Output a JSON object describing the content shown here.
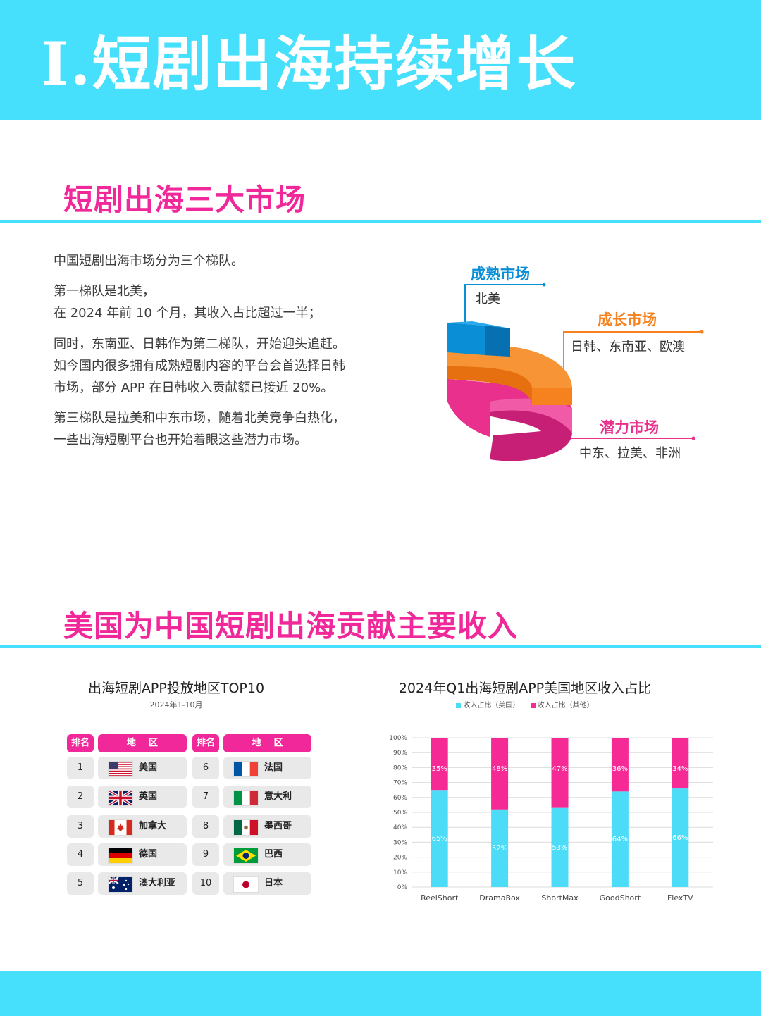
{
  "header": {
    "title": "Ⅰ.短剧出海持续增长"
  },
  "section1": {
    "title": "短剧出海三大市场",
    "paragraphs": [
      [
        "中国短剧出海市场分为三个梯队。"
      ],
      [
        "第一梯队是北美，",
        "在 2024 年前 10 个月，其收入占比超过一半；"
      ],
      [
        "同时，东南亚、日韩作为第二梯队，开始迎头追赶。",
        "如今国内很多拥有成熟短剧内容的平台会首选择日韩",
        "市场，部分 APP 在日韩收入贡献额已接近 20%。"
      ],
      [
        "第三梯队是拉美和中东市场，随着北美竞争白热化，",
        "一些出海短剧平台也开始着眼这些潜力市场。"
      ]
    ],
    "markets": [
      {
        "title": "成熟市场",
        "desc": "北美",
        "color": "#0a8fd6"
      },
      {
        "title": "成长市场",
        "desc": "日韩、东南亚、欧澳",
        "color": "#f5821f"
      },
      {
        "title": "潜力市场",
        "desc": "中东、拉美、非洲",
        "color": "#e8308c"
      }
    ]
  },
  "section2": {
    "title": "美国为中国短剧出海贡献主要收入",
    "table": {
      "title": "出海短剧APP投放地区TOP10",
      "subtitle": "2024年1-10月",
      "header_rank": "排名",
      "header_region": "地    区",
      "rows_left": [
        {
          "rank": "1",
          "name": "美国",
          "flag": "us-flag-icon"
        },
        {
          "rank": "2",
          "name": "英国",
          "flag": "uk-flag-icon"
        },
        {
          "rank": "3",
          "name": "加拿大",
          "flag": "canada-flag-icon"
        },
        {
          "rank": "4",
          "name": "德国",
          "flag": "germany-flag-icon"
        },
        {
          "rank": "5",
          "name": "澳大利亚",
          "flag": "australia-flag-icon"
        }
      ],
      "rows_right": [
        {
          "rank": "6",
          "name": "法国",
          "flag": "france-flag-icon"
        },
        {
          "rank": "7",
          "name": "意大利",
          "flag": "italy-flag-icon"
        },
        {
          "rank": "8",
          "name": "墨西哥",
          "flag": "mexico-flag-icon"
        },
        {
          "rank": "9",
          "name": "巴西",
          "flag": "brazil-flag-icon"
        },
        {
          "rank": "10",
          "name": "日本",
          "flag": "japan-flag-icon"
        }
      ]
    }
  },
  "chart_data": {
    "type": "bar",
    "stacked": true,
    "title": "2024年Q1出海短剧APP美国地区收入占比",
    "categories": [
      "ReelShort",
      "DramaBox",
      "ShortMax",
      "GoodShort",
      "FlexTV"
    ],
    "series": [
      {
        "name": "收入占比（美国）",
        "values": [
          65,
          52,
          53,
          64,
          66
        ],
        "color": "#4ddcf7"
      },
      {
        "name": "收入占比（其他）",
        "values": [
          35,
          48,
          47,
          36,
          34
        ],
        "color": "#f52a95"
      }
    ],
    "ylim": [
      0,
      100
    ],
    "yticks": [
      "0%",
      "10%",
      "20%",
      "30%",
      "40%",
      "50%",
      "60%",
      "70%",
      "80%",
      "90%",
      "100%"
    ],
    "legend_position": "top",
    "grid": true
  }
}
